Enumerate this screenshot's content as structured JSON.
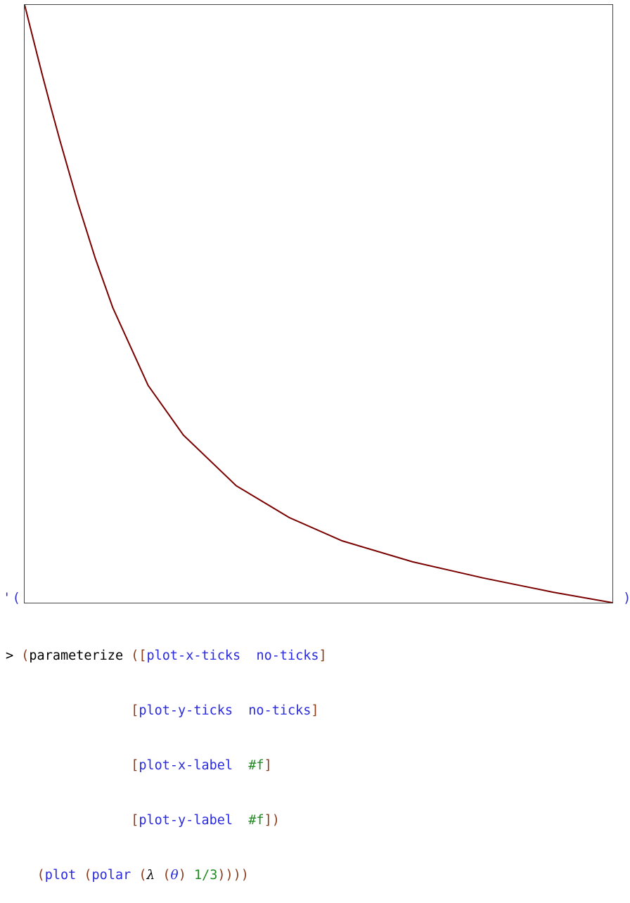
{
  "output": {
    "quote_open": "'(",
    "quote_close": ")",
    "curve_color": "#7a0000"
  },
  "chart_data": {
    "type": "line",
    "title": "",
    "xlabel": "",
    "ylabel": "",
    "ticks": "none",
    "xlim": [
      0.0,
      0.3333
    ],
    "ylim": [
      0.0,
      0.3333
    ],
    "series": [
      {
        "color": "#7a0000",
        "x": [
          0.0,
          0.001,
          0.002,
          0.004,
          0.007,
          0.01,
          0.015,
          0.02,
          0.03,
          0.04,
          0.05,
          0.07,
          0.09,
          0.12,
          0.15,
          0.18,
          0.22,
          0.26,
          0.3,
          0.3333
        ],
        "y": [
          0.3333,
          0.3295,
          0.3255,
          0.3177,
          0.306,
          0.2944,
          0.2758,
          0.2578,
          0.2235,
          0.1922,
          0.1645,
          0.1212,
          0.0935,
          0.0652,
          0.0475,
          0.0345,
          0.0228,
          0.0138,
          0.0058,
          0.0
        ]
      }
    ]
  },
  "repl": {
    "prompt": ">",
    "line1": {
      "head": "parameterize",
      "binding1_name": "plot-x-ticks",
      "binding1_value": "no-ticks"
    },
    "line2": {
      "binding_name": "plot-y-ticks",
      "binding_value": "no-ticks"
    },
    "line3": {
      "binding_name": "plot-x-label",
      "binding_value": "#f"
    },
    "line4": {
      "binding_name": "plot-y-label",
      "binding_value": "#f"
    },
    "line5": {
      "plot": "plot",
      "polar": "polar",
      "lambda": "λ",
      "theta": "θ",
      "value": "1/3"
    }
  }
}
